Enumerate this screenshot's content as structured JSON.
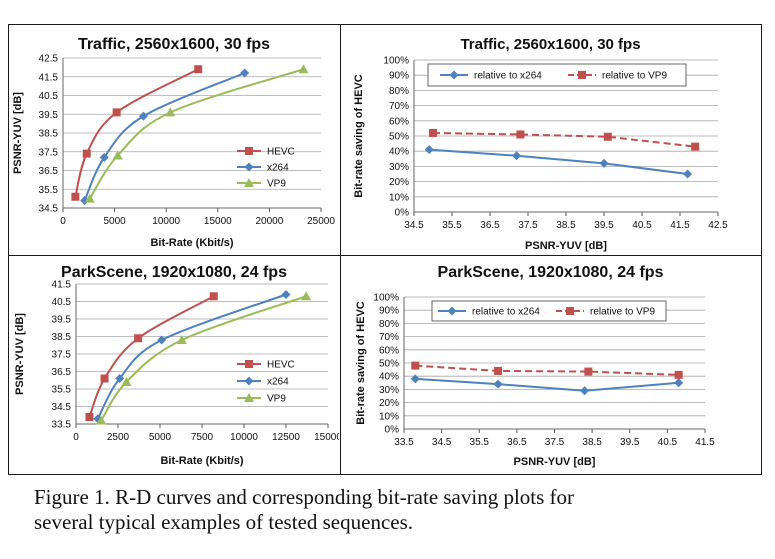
{
  "chart_data": [
    {
      "type": "line",
      "title": "Traffic,  2560x1600, 30 fps",
      "xlabel": "Bit-Rate (Kbit/s)",
      "ylabel": "PSNR-YUV [dB]",
      "xlim": [
        0,
        25000
      ],
      "ylim": [
        34.5,
        42.5
      ],
      "xticks": [
        0,
        5000,
        10000,
        15000,
        20000,
        25000
      ],
      "xtick_labels": [
        "0",
        "5000",
        "10000",
        "15000",
        "20000",
        "25000"
      ],
      "yticks": [
        34.5,
        35.5,
        36.5,
        37.5,
        38.5,
        39.5,
        40.5,
        41.5,
        42.5
      ],
      "ytick_labels": [
        "34.5",
        "35.5",
        "36.5",
        "37.5",
        "38.5",
        "39.5",
        "40.5",
        "41.5",
        "42.5"
      ],
      "grid": true,
      "legend": "right",
      "legend_style": "plain",
      "series": [
        {
          "name": "HEVC",
          "color": "#c0504d",
          "marker": "square",
          "dash": false,
          "x": [
            1200,
            2300,
            5200,
            13100
          ],
          "y": [
            35.1,
            37.4,
            39.6,
            41.9
          ]
        },
        {
          "name": "x264",
          "color": "#4f81bd",
          "marker": "diamond",
          "dash": false,
          "x": [
            2100,
            4000,
            7800,
            17600
          ],
          "y": [
            34.9,
            37.2,
            39.4,
            41.7
          ]
        },
        {
          "name": "VP9",
          "color": "#9bbb59",
          "marker": "triangle",
          "dash": false,
          "x": [
            2600,
            5300,
            10400,
            23300
          ],
          "y": [
            35.0,
            37.3,
            39.6,
            41.9
          ]
        }
      ]
    },
    {
      "type": "line",
      "title": "Traffic, 2560x1600, 30 fps",
      "xlabel": "PSNR-YUV [dB]",
      "ylabel": "Bit-rate saving of HEVC",
      "xlim": [
        34.5,
        42.5
      ],
      "ylim": [
        0,
        100
      ],
      "xticks": [
        34.5,
        35.5,
        36.5,
        37.5,
        38.5,
        39.5,
        40.5,
        41.5,
        42.5
      ],
      "xtick_labels": [
        "34.5",
        "35.5",
        "36.5",
        "37.5",
        "38.5",
        "39.5",
        "40.5",
        "41.5",
        "42.5"
      ],
      "yticks": [
        0,
        10,
        20,
        30,
        40,
        50,
        60,
        70,
        80,
        90,
        100
      ],
      "ytick_labels": [
        "0%",
        "10%",
        "20%",
        "30%",
        "40%",
        "50%",
        "60%",
        "70%",
        "80%",
        "90%",
        "100%"
      ],
      "grid": true,
      "legend": "top",
      "legend_style": "boxed",
      "series": [
        {
          "name": "relative to x264",
          "color": "#4f81bd",
          "marker": "diamond",
          "dash": false,
          "x": [
            34.9,
            37.2,
            39.5,
            41.7
          ],
          "y": [
            41,
            37,
            32,
            25
          ]
        },
        {
          "name": "relative to VP9",
          "color": "#c0504d",
          "marker": "square",
          "dash": true,
          "x": [
            35.0,
            37.3,
            39.6,
            41.9
          ],
          "y": [
            52,
            51,
            49.5,
            43
          ]
        }
      ]
    },
    {
      "type": "line",
      "title": "ParkScene, 1920x1080, 24 fps",
      "xlabel": "Bit-Rate (Kbit/s)",
      "ylabel": "PSNR-YUV [dB]",
      "xlim": [
        0,
        15000
      ],
      "ylim": [
        33.5,
        41.5
      ],
      "xticks": [
        0,
        2500,
        5000,
        7500,
        10000,
        12500,
        15000
      ],
      "xtick_labels": [
        "0",
        "2500",
        "5000",
        "7500",
        "10000",
        "12500",
        "15000"
      ],
      "yticks": [
        33.5,
        34.5,
        35.5,
        36.5,
        37.5,
        38.5,
        39.5,
        40.5,
        41.5
      ],
      "ytick_labels": [
        "33.5",
        "34.5",
        "35.5",
        "36.5",
        "37.5",
        "38.5",
        "39.5",
        "40.5",
        "41.5"
      ],
      "grid": true,
      "legend": "right",
      "legend_style": "plain",
      "series": [
        {
          "name": "HEVC",
          "color": "#c0504d",
          "marker": "square",
          "dash": false,
          "x": [
            800,
            1700,
            3700,
            8200
          ],
          "y": [
            33.9,
            36.1,
            38.4,
            40.8
          ]
        },
        {
          "name": "x264",
          "color": "#4f81bd",
          "marker": "diamond",
          "dash": false,
          "x": [
            1300,
            2600,
            5100,
            12500
          ],
          "y": [
            33.8,
            36.1,
            38.3,
            40.9
          ]
        },
        {
          "name": "VP9",
          "color": "#9bbb59",
          "marker": "triangle",
          "dash": false,
          "x": [
            1500,
            3000,
            6300,
            13700
          ],
          "y": [
            33.7,
            35.9,
            38.3,
            40.8
          ]
        }
      ]
    },
    {
      "type": "line",
      "title": "ParkScene, 1920x1080, 24 fps",
      "xlabel": "PSNR-YUV [dB]",
      "ylabel": "Bit-rate saving of HEVC",
      "xlim": [
        33.5,
        41.5
      ],
      "ylim": [
        0,
        100
      ],
      "xticks": [
        33.5,
        34.5,
        35.5,
        36.5,
        37.5,
        38.5,
        39.5,
        40.5,
        41.5
      ],
      "xtick_labels": [
        "33.5",
        "34.5",
        "35.5",
        "36.5",
        "37.5",
        "38.5",
        "39.5",
        "40.5",
        "41.5"
      ],
      "yticks": [
        0,
        10,
        20,
        30,
        40,
        50,
        60,
        70,
        80,
        90,
        100
      ],
      "ytick_labels": [
        "0%",
        "10%",
        "20%",
        "30%",
        "40%",
        "50%",
        "60%",
        "70%",
        "80%",
        "90%",
        "100%"
      ],
      "grid": true,
      "legend": "top",
      "legend_style": "boxed",
      "series": [
        {
          "name": "relative to x264",
          "color": "#4f81bd",
          "marker": "diamond",
          "dash": false,
          "x": [
            33.8,
            36.0,
            38.3,
            40.8
          ],
          "y": [
            38,
            34,
            29,
            35
          ]
        },
        {
          "name": "relative to VP9",
          "color": "#c0504d",
          "marker": "square",
          "dash": true,
          "x": [
            33.8,
            36.0,
            38.4,
            40.8
          ],
          "y": [
            48,
            44,
            43.5,
            41
          ]
        }
      ]
    }
  ],
  "caption": {
    "line1": "Figure 1. R-D curves and corresponding bit-rate saving plots for",
    "line2": "several typical examples of tested sequences."
  }
}
